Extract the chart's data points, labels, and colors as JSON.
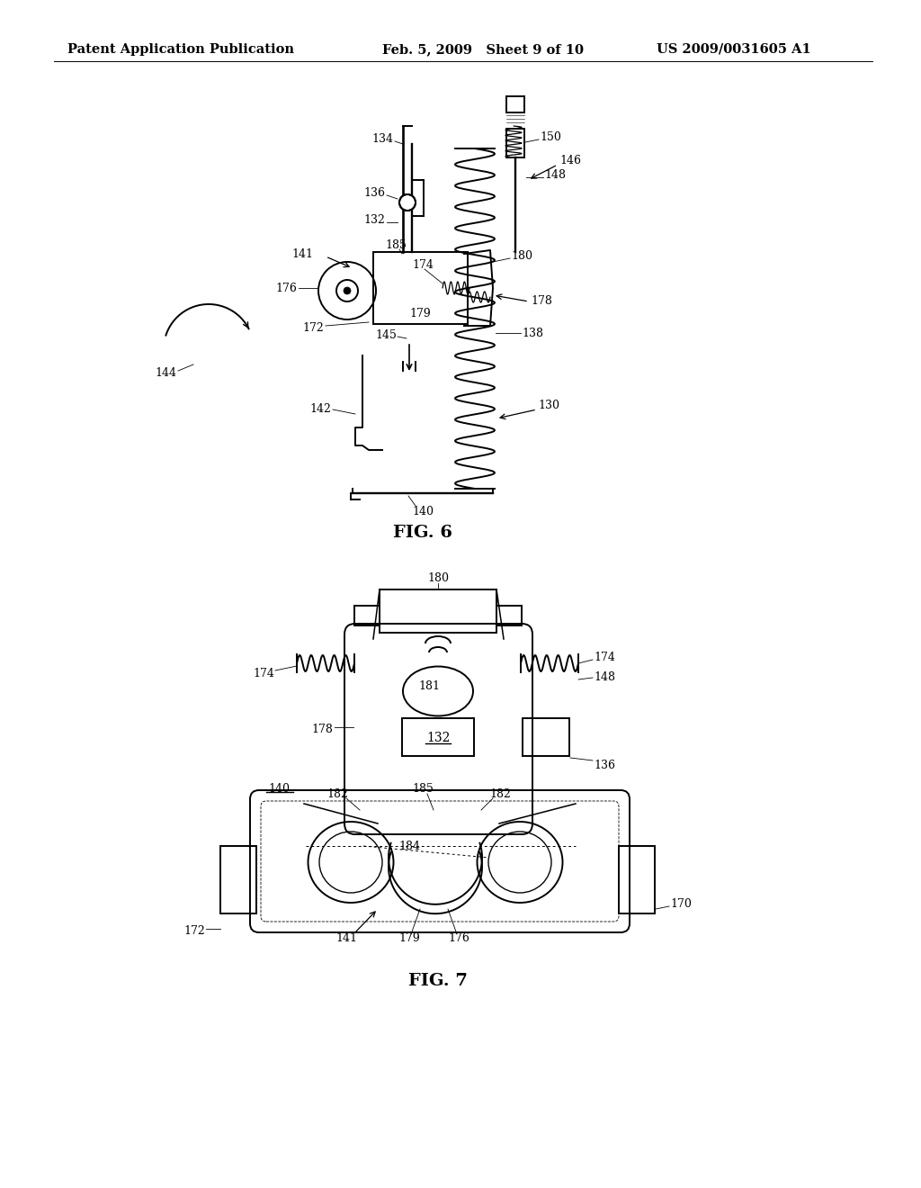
{
  "background_color": "#ffffff",
  "page_width": 10.24,
  "page_height": 13.2,
  "header_left": "Patent Application Publication",
  "header_center": "Feb. 5, 2009   Sheet 9 of 10",
  "header_right": "US 2009/0031605 A1",
  "fig6_title": "FIG. 6",
  "fig7_title": "FIG. 7",
  "lc": "#000000",
  "lw": 1.4,
  "tlw": 0.9
}
